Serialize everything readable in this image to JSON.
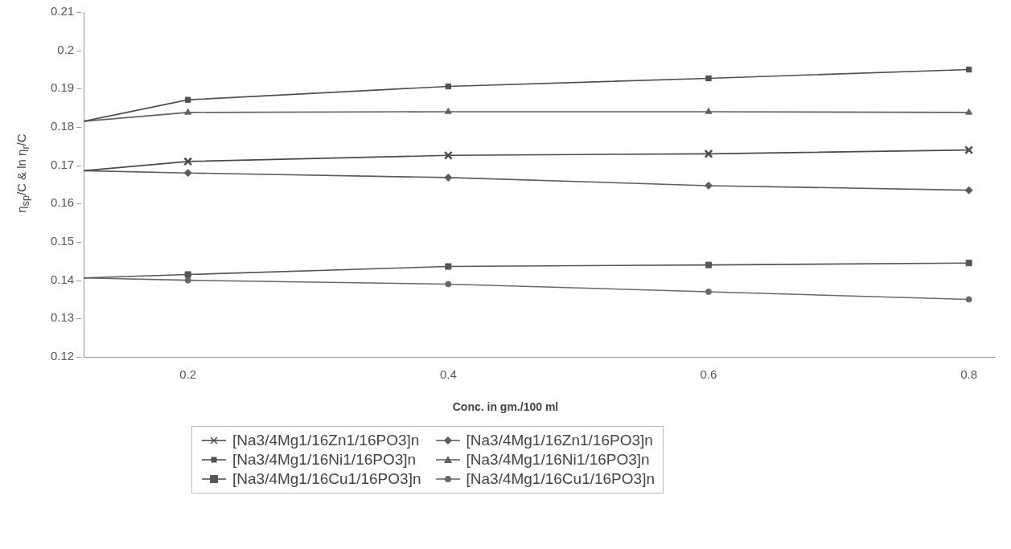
{
  "chart_data": {
    "type": "line",
    "xlabel": "Conc. in gm./100 ml",
    "ylabel": "η$_{sp}$/C & ln η$_{r}$/C",
    "x": [
      0.12,
      0.2,
      0.4,
      0.6,
      0.8
    ],
    "xlim": [
      0.12,
      0.82
    ],
    "xticks": [
      0.2,
      0.4,
      0.6,
      0.8
    ],
    "ylim": [
      0.12,
      0.21
    ],
    "yticks": [
      0.12,
      0.13,
      0.14,
      0.15,
      0.16,
      0.17,
      0.18,
      0.19,
      0.2,
      0.21
    ],
    "grid": false,
    "legend": "bottom",
    "line_style": "solid",
    "series": [
      {
        "name": "[Na3/4Mg1/16Zn1/16PO3]n",
        "color": "#4a4a4a",
        "marker": "cross",
        "values": [
          0.1686,
          0.171,
          0.1726,
          0.173,
          0.174
        ]
      },
      {
        "name": "[Na3/4Mg1/16Ni1/16PO3]n",
        "color": "#505050",
        "marker": "square",
        "values": [
          0.1815,
          0.1871,
          0.1906,
          0.1927,
          0.195
        ]
      },
      {
        "name": "[Na3/4Mg1/16Cu1/16PO3]n",
        "color": "#565656",
        "marker": "square",
        "values": [
          0.1406,
          0.1415,
          0.1436,
          0.144,
          0.1445
        ]
      },
      {
        "name": "[Na3/4Mg1/16Zn1/16PO3]n",
        "color": "#5c5c5c",
        "marker": "diamond",
        "values": [
          0.1686,
          0.168,
          0.1668,
          0.1647,
          0.1635
        ]
      },
      {
        "name": "[Na3/4Mg1/16Ni1/16PO3]n",
        "color": "#626262",
        "marker": "triangle",
        "values": [
          0.1815,
          0.1838,
          0.184,
          0.184,
          0.1838
        ]
      },
      {
        "name": "[Na3/4Mg1/16Cu1/16PO3]n",
        "color": "#686868",
        "marker": "circle",
        "values": [
          0.1406,
          0.14,
          0.139,
          0.137,
          0.135
        ]
      }
    ]
  }
}
